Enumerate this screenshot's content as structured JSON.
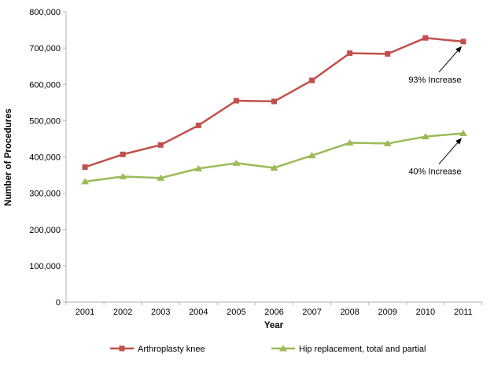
{
  "chart_data": {
    "type": "line",
    "title": "",
    "xlabel": "Year",
    "ylabel": "Number of Procedures",
    "x": [
      "2001",
      "2002",
      "2003",
      "2004",
      "2005",
      "2006",
      "2007",
      "2008",
      "2009",
      "2010",
      "2011"
    ],
    "series": [
      {
        "name": "Arthroplasty knee",
        "color": "#C0504D",
        "marker": "square",
        "values": [
          372000,
          407000,
          433000,
          487000,
          555000,
          553000,
          611000,
          686000,
          684000,
          728000,
          718000
        ]
      },
      {
        "name": "Hip replacement, total and partial",
        "color": "#9BBB59",
        "marker": "triangle",
        "values": [
          332000,
          346000,
          342000,
          368000,
          383000,
          370000,
          404000,
          439000,
          437000,
          456000,
          465000
        ]
      }
    ],
    "ylim": [
      0,
      800000
    ],
    "ytick_interval": 100000,
    "grid": false,
    "legend_position": "bottom",
    "annotations": [
      {
        "text": "93% Increase",
        "series_index": 0,
        "target_x": "2011"
      },
      {
        "text": "40% Increase",
        "series_index": 1,
        "target_x": "2011"
      }
    ]
  },
  "style": {
    "axis_color": "#BFBFBF",
    "annotation_color": "#000000",
    "background": "#ffffff"
  }
}
